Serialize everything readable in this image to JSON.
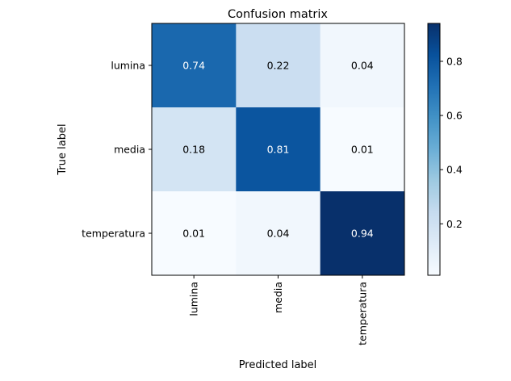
{
  "chart_data": {
    "type": "heatmap",
    "title": "Confusion matrix",
    "xlabel": "Predicted label",
    "ylabel": "True label",
    "x_categories": [
      "lumina",
      "media",
      "temperatura"
    ],
    "y_categories": [
      "lumina",
      "media",
      "temperatura"
    ],
    "values": [
      [
        0.74,
        0.22,
        0.04
      ],
      [
        0.18,
        0.81,
        0.01
      ],
      [
        0.01,
        0.04,
        0.94
      ]
    ],
    "value_labels": [
      [
        "0.74",
        "0.22",
        "0.04"
      ],
      [
        "0.18",
        "0.81",
        "0.01"
      ],
      [
        "0.01",
        "0.04",
        "0.94"
      ]
    ],
    "colormap": "Blues",
    "colormap_stops": [
      "#f7fbff",
      "#deebf7",
      "#c6dbef",
      "#9ecae1",
      "#6baed6",
      "#4292c6",
      "#2171b5",
      "#08519c",
      "#08306b"
    ],
    "color_range": [
      0.01,
      0.94
    ],
    "colorbar": {
      "ticks": [
        0.2,
        0.4,
        0.6,
        0.8
      ],
      "tick_labels": [
        "0.2",
        "0.4",
        "0.6",
        "0.8"
      ]
    },
    "cell_text_colors": {
      "dark": "#000000",
      "light": "#ffffff",
      "threshold": 0.47
    }
  }
}
